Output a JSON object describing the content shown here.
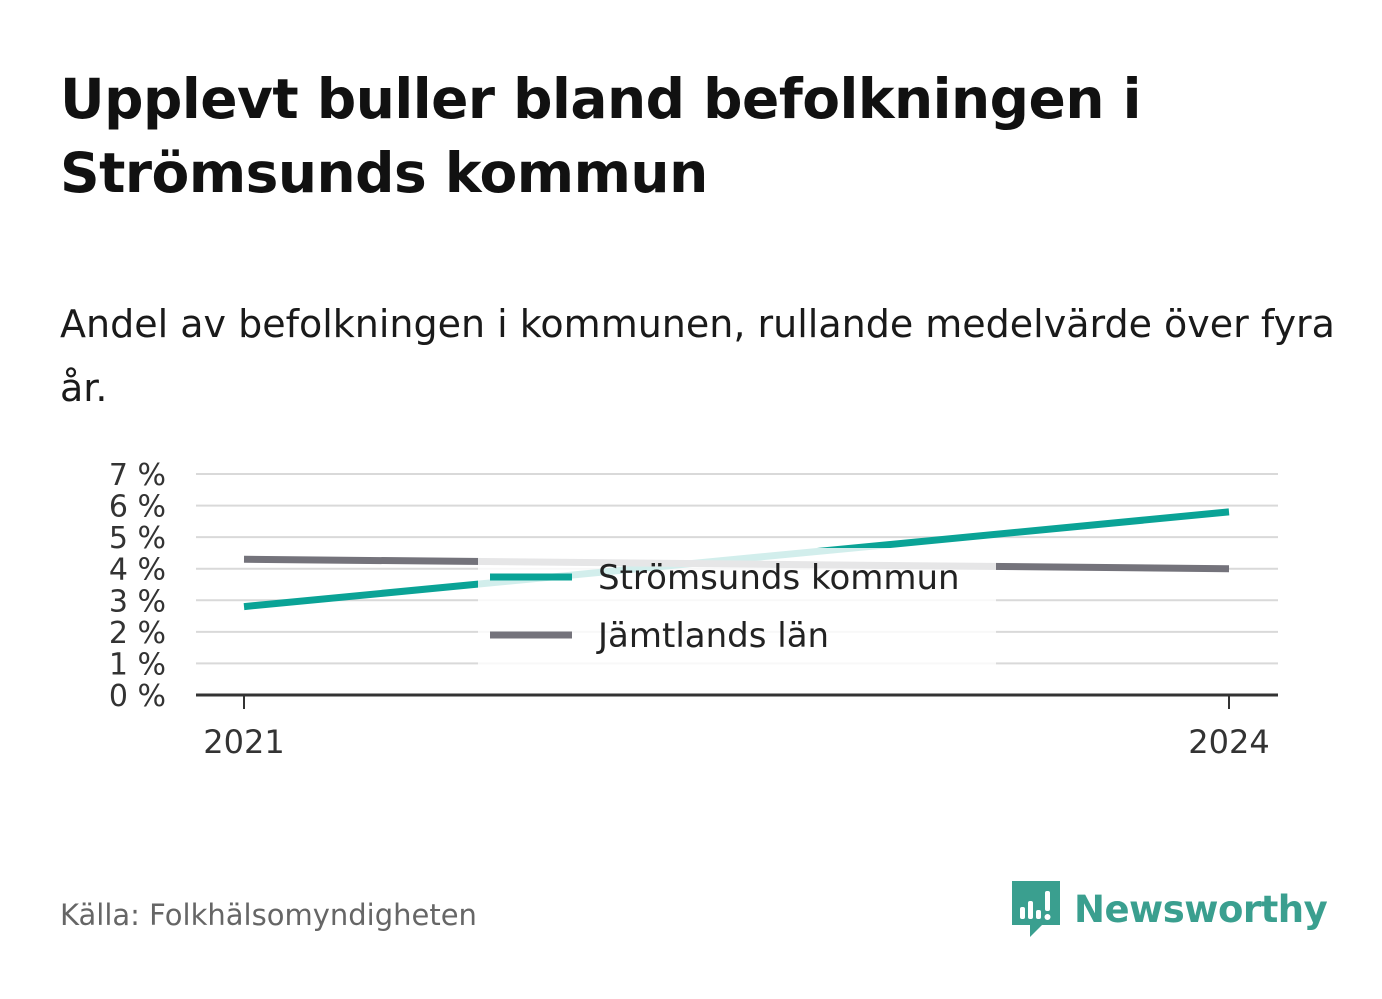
{
  "title": "Upplevt buller bland befolkningen i Strömsunds kommun",
  "subtitle": "Andel av befolkningen i kommunen, rullande medelvärde över fyra år.",
  "source": "Källa: Folkhälsomyndigheten",
  "brand": {
    "name": "Newsworthy",
    "icon": "bar-chart-speech-bubble-icon",
    "color": "#3a9f8f"
  },
  "chart_data": {
    "type": "line",
    "x": [
      "2021",
      "2024"
    ],
    "series": [
      {
        "name": "Strömsunds kommun",
        "values": [
          2.8,
          5.8
        ],
        "color": "#0aa396"
      },
      {
        "name": "Jämtlands län",
        "values": [
          4.3,
          4.0
        ],
        "color": "#74737b"
      }
    ],
    "ylim": [
      0,
      7
    ],
    "yticks": [
      0,
      1,
      2,
      3,
      4,
      5,
      6,
      7
    ],
    "ytick_labels": [
      "0 %",
      "1 %",
      "2 %",
      "3 %",
      "4 %",
      "5 %",
      "6 %",
      "7 %"
    ],
    "xticks": [
      "2021",
      "2024"
    ],
    "grid": true,
    "legend": "center"
  }
}
